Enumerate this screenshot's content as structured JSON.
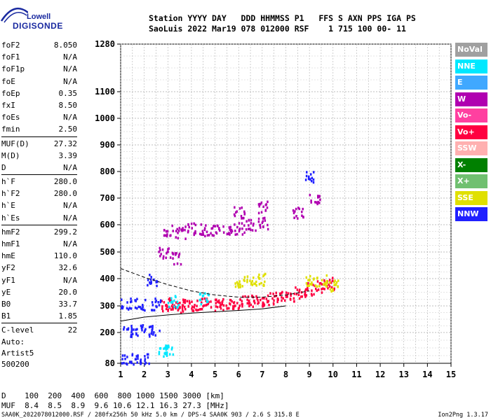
{
  "logo": {
    "top": "Lowell",
    "bottom": "DIGISONDE"
  },
  "header": {
    "line1": "Station YYYY DAY   DDD HHMMSS P1   FFS S AXN PPS IGA PS",
    "line2": "SaoLuis 2022 Mar19 078 012000 RSF    1 715 100 00- 11"
  },
  "params": [
    {
      "label": "foF2",
      "value": "8.050"
    },
    {
      "label": "foF1",
      "value": "N/A"
    },
    {
      "label": "foF1p",
      "value": "N/A"
    },
    {
      "label": "foE",
      "value": "N/A"
    },
    {
      "label": "foEp",
      "value": "0.35"
    },
    {
      "label": "fxI",
      "value": "8.50"
    },
    {
      "label": "foEs",
      "value": "N/A"
    },
    {
      "label": "fmin",
      "value": "2.50"
    },
    {
      "label": "MUF(D)",
      "value": "27.32"
    },
    {
      "label": "M(D)",
      "value": "3.39"
    },
    {
      "label": "D",
      "value": "N/A"
    },
    {
      "label": "h`F",
      "value": "280.0"
    },
    {
      "label": "h`F2",
      "value": "280.0"
    },
    {
      "label": "h`E",
      "value": "N/A"
    },
    {
      "label": "h`Es",
      "value": "N/A"
    },
    {
      "label": "hmF2",
      "value": "299.2"
    },
    {
      "label": "hmF1",
      "value": "N/A"
    },
    {
      "label": "hmE",
      "value": "110.0"
    },
    {
      "label": "yF2",
      "value": "32.6"
    },
    {
      "label": "yF1",
      "value": "N/A"
    },
    {
      "label": "yE",
      "value": "20.0"
    },
    {
      "label": "B0",
      "value": "33.7"
    },
    {
      "label": "B1",
      "value": "1.85"
    },
    {
      "label": "C-level",
      "value": "22"
    }
  ],
  "auto": {
    "line1": "Auto:",
    "line2": "Artist5",
    "line3": "500200"
  },
  "legend": [
    {
      "label": "NoVal",
      "color": "#a0a0a0"
    },
    {
      "label": "NNE",
      "color": "#00e8ff"
    },
    {
      "label": "E",
      "color": "#40a8ff"
    },
    {
      "label": "W",
      "color": "#b000b0"
    },
    {
      "label": "Vo-",
      "color": "#ff40a0"
    },
    {
      "label": "Vo+",
      "color": "#ff0040"
    },
    {
      "label": "SSW",
      "color": "#ffb0b0"
    },
    {
      "label": "X-",
      "color": "#008000"
    },
    {
      "label": "X+",
      "color": "#70c070"
    },
    {
      "label": "SSE",
      "color": "#e0e000"
    },
    {
      "label": "NNW",
      "color": "#2020ff"
    }
  ],
  "bottom": {
    "d_line": "D    100  200  400  600  800 1000 1500 3000 [km]",
    "muf_line": "MUF  8.4  8.5  8.9  9.6 10.6 12.1 16.3 27.3 [MHz]"
  },
  "footer": {
    "left": "SAA0K_2022078012000.RSF / 280fx256h 50 kHz 5.0 km / DPS-4 SAA0K 903 / 2.6 S 315.8 E",
    "right": "Ion2Png 1.3.17"
  },
  "chart_data": {
    "type": "scatter",
    "x_ticks": [
      1,
      2,
      3,
      4,
      5,
      6,
      7,
      8,
      9,
      10,
      11,
      12,
      13,
      14,
      15
    ],
    "y_ticks": [
      80,
      200,
      300,
      400,
      500,
      600,
      700,
      800,
      900,
      1000,
      1100,
      1280
    ],
    "xlim": [
      1,
      15
    ],
    "ylim": [
      80,
      1280
    ],
    "grid": true,
    "series": [
      {
        "color": "#ff0040",
        "points": [
          [
            2.9,
            305
          ],
          [
            3.2,
            310
          ],
          [
            3.5,
            300
          ],
          [
            3.8,
            305
          ],
          [
            4.2,
            308
          ],
          [
            4.6,
            312
          ],
          [
            5.0,
            305
          ],
          [
            5.4,
            310
          ],
          [
            5.8,
            315
          ],
          [
            6.2,
            318
          ],
          [
            6.6,
            320
          ],
          [
            7.0,
            325
          ],
          [
            7.4,
            330
          ],
          [
            7.8,
            335
          ],
          [
            8.2,
            340
          ],
          [
            8.6,
            350
          ],
          [
            9.0,
            365
          ],
          [
            9.4,
            375
          ],
          [
            9.8,
            385
          ]
        ]
      },
      {
        "color": "#b000b0",
        "points": [
          [
            3.0,
            580
          ],
          [
            3.5,
            575
          ],
          [
            4.0,
            590
          ],
          [
            4.5,
            585
          ],
          [
            5.0,
            580
          ],
          [
            5.5,
            585
          ],
          [
            6.0,
            590
          ],
          [
            6.5,
            600
          ],
          [
            7.0,
            610
          ],
          [
            2.8,
            500
          ],
          [
            3.3,
            480
          ],
          [
            6.0,
            650
          ],
          [
            7.0,
            670
          ],
          [
            8.5,
            650
          ],
          [
            9.2,
            700
          ]
        ]
      },
      {
        "color": "#2020ff",
        "points": [
          [
            1.2,
            100
          ],
          [
            1.6,
            100
          ],
          [
            2.0,
            100
          ],
          [
            1.3,
            210
          ],
          [
            1.8,
            210
          ],
          [
            2.4,
            210
          ],
          [
            1.2,
            310
          ],
          [
            1.8,
            310
          ],
          [
            2.5,
            310
          ],
          [
            2.3,
            400
          ],
          [
            9.0,
            780
          ]
        ]
      },
      {
        "color": "#e0e000",
        "points": [
          [
            6.0,
            390
          ],
          [
            6.5,
            395
          ],
          [
            7.0,
            400
          ],
          [
            9.0,
            400
          ],
          [
            9.5,
            395
          ],
          [
            10.0,
            380
          ]
        ]
      },
      {
        "color": "#00e8ff",
        "points": [
          [
            2.8,
            130
          ],
          [
            3.0,
            140
          ],
          [
            3.2,
            320
          ],
          [
            4.5,
            330
          ]
        ]
      }
    ],
    "traces": [
      {
        "color": "#000000",
        "points": [
          [
            1.0,
            243
          ],
          [
            2.0,
            258
          ],
          [
            3.0,
            266
          ],
          [
            4.0,
            273
          ],
          [
            5.0,
            278
          ],
          [
            6.0,
            283
          ],
          [
            7.0,
            289
          ],
          [
            8.0,
            300
          ]
        ]
      },
      {
        "color": "#000000",
        "points": [
          [
            1.0,
            438
          ],
          [
            2.0,
            405
          ],
          [
            3.0,
            378
          ],
          [
            4.0,
            355
          ],
          [
            5.0,
            340
          ],
          [
            6.0,
            332
          ],
          [
            7.0,
            332
          ],
          [
            8.0,
            340
          ],
          [
            9.0,
            355
          ]
        ]
      }
    ]
  }
}
